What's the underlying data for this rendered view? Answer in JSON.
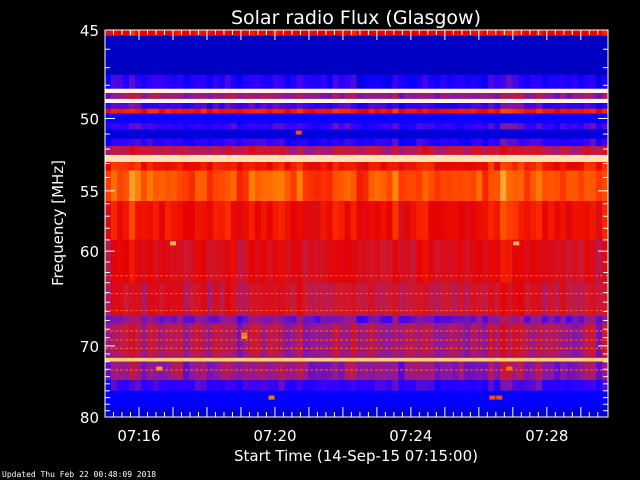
{
  "chart_data": {
    "type": "heatmap",
    "title": "Solar radio Flux (Glasgow)",
    "xlabel": "Start Time (14-Sep-15 07:15:00)",
    "ylabel": "Frequency [MHz]",
    "x_ticks": [
      "07:16",
      "07:20",
      "07:24",
      "07:28"
    ],
    "x_tick_minutes": [
      1,
      5,
      9,
      13
    ],
    "xlim_minutes": [
      0,
      14.8
    ],
    "y_ticks": [
      45,
      50,
      55,
      60,
      70,
      80
    ],
    "ylim": [
      45,
      80
    ],
    "y_scale": "reciprocal",
    "colormap": [
      "#000080",
      "#0000ff",
      "#3300ff",
      "#8a1aa0",
      "#cc1a33",
      "#e60000",
      "#ff3300",
      "#ff8800",
      "#ffcc66",
      "#ffffff"
    ],
    "frequency_bands": [
      {
        "f0": 45.0,
        "f1": 45.3,
        "level": 0.55
      },
      {
        "f0": 45.3,
        "f1": 47.4,
        "level": 0.06
      },
      {
        "f0": 47.4,
        "f1": 48.2,
        "level": 0.18
      },
      {
        "f0": 48.2,
        "f1": 48.45,
        "level": 0.98
      },
      {
        "f0": 48.45,
        "f1": 48.8,
        "level": 0.35
      },
      {
        "f0": 48.8,
        "f1": 49.05,
        "level": 0.98
      },
      {
        "f0": 49.05,
        "f1": 49.4,
        "level": 0.22
      },
      {
        "f0": 49.4,
        "f1": 49.7,
        "level": 0.6
      },
      {
        "f0": 49.7,
        "f1": 50.3,
        "level": 0.14
      },
      {
        "f0": 50.3,
        "f1": 50.7,
        "level": 0.22
      },
      {
        "f0": 50.7,
        "f1": 51.3,
        "level": 0.08
      },
      {
        "f0": 51.3,
        "f1": 51.8,
        "level": 0.2
      },
      {
        "f0": 51.8,
        "f1": 52.4,
        "level": 0.42
      },
      {
        "f0": 52.4,
        "f1": 52.9,
        "level": 0.94
      },
      {
        "f0": 52.9,
        "f1": 53.5,
        "level": 0.6
      },
      {
        "f0": 53.5,
        "f1": 55.8,
        "level": 0.7
      },
      {
        "f0": 55.8,
        "f1": 59.0,
        "level": 0.58
      },
      {
        "f0": 59.0,
        "f1": 63.0,
        "level": 0.5
      },
      {
        "f0": 63.0,
        "f1": 66.5,
        "level": 0.45
      },
      {
        "f0": 66.5,
        "f1": 67.3,
        "level": 0.3
      },
      {
        "f0": 67.3,
        "f1": 71.5,
        "level": 0.38
      },
      {
        "f0": 71.5,
        "f1": 72.0,
        "level": 0.9
      },
      {
        "f0": 72.0,
        "f1": 74.5,
        "level": 0.34
      },
      {
        "f0": 74.5,
        "f1": 76.0,
        "level": 0.22
      },
      {
        "f0": 76.0,
        "f1": 78.5,
        "level": 0.12
      },
      {
        "f0": 78.5,
        "f1": 80.0,
        "level": 0.08
      }
    ],
    "spots": [
      {
        "t": 2.0,
        "f": 59.3,
        "level": 0.85
      },
      {
        "t": 12.1,
        "f": 59.3,
        "level": 0.85
      },
      {
        "t": 5.7,
        "f": 50.9,
        "level": 0.7
      },
      {
        "t": 4.1,
        "f": 68.9,
        "level": 0.8
      },
      {
        "t": 4.1,
        "f": 68.6,
        "level": 0.75
      },
      {
        "t": 4.9,
        "f": 77.0,
        "level": 0.75
      },
      {
        "t": 11.4,
        "f": 77.0,
        "level": 0.7
      },
      {
        "t": 11.6,
        "f": 77.0,
        "level": 0.7
      },
      {
        "t": 1.6,
        "f": 72.9,
        "level": 0.8
      },
      {
        "t": 11.9,
        "f": 72.9,
        "level": 0.75
      }
    ]
  },
  "footer": {
    "updated": "Updated Thu Feb 22 00:48:09 2018"
  }
}
